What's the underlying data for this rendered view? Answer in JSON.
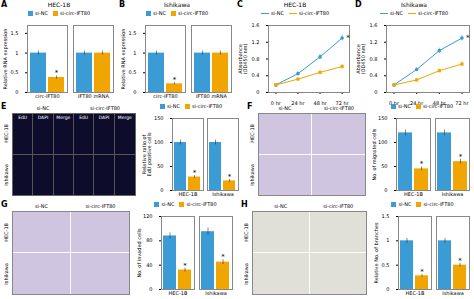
{
  "chart_data": [
    {
      "type": "bar",
      "label": "A",
      "title": "HEC-1B",
      "categories": [
        "circ-IFT80",
        "IFT80 mRNA"
      ],
      "series": [
        {
          "name": "si-NC",
          "color": "#3A9BD5",
          "values": [
            1.0,
            1.0
          ],
          "errors": [
            0.05,
            0.05
          ]
        },
        {
          "name": "si-circ-IFT80",
          "color": "#F0A500",
          "values": [
            0.38,
            1.0
          ],
          "errors": [
            0.04,
            0.05
          ]
        }
      ],
      "ylabel": "Relative RNA expression",
      "ylim": [
        0,
        1.7
      ],
      "yticks": [
        0,
        0.5,
        1,
        1.5
      ],
      "annotations": [
        {
          "text": "*",
          "series": "si-circ-IFT80",
          "category": "circ-IFT80"
        }
      ]
    },
    {
      "type": "bar",
      "label": "B",
      "title": "Ishikawa",
      "categories": [
        "circ-IFT80",
        "IFT80 mRNA"
      ],
      "series": [
        {
          "name": "si-NC",
          "color": "#3A9BD5",
          "values": [
            1.0,
            1.0
          ],
          "errors": [
            0.05,
            0.05
          ]
        },
        {
          "name": "si-circ-IFT80",
          "color": "#F0A500",
          "values": [
            0.22,
            1.0
          ],
          "errors": [
            0.03,
            0.05
          ]
        }
      ],
      "ylabel": "Relative RNA expression",
      "ylim": [
        0,
        1.7
      ],
      "yticks": [
        0,
        0.5,
        1,
        1.5
      ],
      "annotations": [
        {
          "text": "*",
          "series": "si-circ-IFT80",
          "category": "circ-IFT80"
        }
      ]
    },
    {
      "type": "line",
      "label": "C",
      "title": "HEC-1B",
      "x": [
        0,
        24,
        48,
        72
      ],
      "series": [
        {
          "name": "si-NC",
          "color": "#3A9BD5",
          "marker": "circle",
          "values": [
            0.18,
            0.45,
            0.85,
            1.3
          ],
          "errors": [
            0.02,
            0.04,
            0.06,
            0.07
          ]
        },
        {
          "name": "si-circ-IFT80",
          "color": "#F0A500",
          "marker": "square",
          "values": [
            0.18,
            0.32,
            0.48,
            0.62
          ],
          "errors": [
            0.02,
            0.03,
            0.04,
            0.05
          ]
        }
      ],
      "ylabel": "Absorbance\n(OD450 nm)",
      "xlim": [
        -8,
        80
      ],
      "xticks": [
        {
          "value": 0,
          "label": "0 hr"
        },
        {
          "value": 24,
          "label": "24 hr"
        },
        {
          "value": 48,
          "label": "48 hr"
        },
        {
          "value": 72,
          "label": "72 hr"
        }
      ],
      "ylim": [
        0,
        1.6
      ],
      "yticks": [
        0,
        0.4,
        0.8,
        1.2,
        1.6
      ],
      "annotations": [
        {
          "text": "*",
          "series": "si-NC",
          "x": 72
        }
      ]
    },
    {
      "type": "line",
      "label": "D",
      "title": "Ishikawa",
      "x": [
        0,
        24,
        48,
        72
      ],
      "series": [
        {
          "name": "si-NC",
          "color": "#3A9BD5",
          "marker": "circle",
          "values": [
            0.18,
            0.55,
            1.0,
            1.3
          ],
          "errors": [
            0.02,
            0.04,
            0.06,
            0.07
          ]
        },
        {
          "name": "si-circ-IFT80",
          "color": "#F0A500",
          "marker": "square",
          "values": [
            0.18,
            0.3,
            0.52,
            0.68
          ],
          "errors": [
            0.02,
            0.03,
            0.04,
            0.05
          ]
        }
      ],
      "ylabel": "Absorbance\n(OD450 nm)",
      "xlim": [
        -8,
        80
      ],
      "xticks": [
        {
          "value": 0,
          "label": "0 hr"
        },
        {
          "value": 24,
          "label": "24 hr"
        },
        {
          "value": 48,
          "label": "48 hr"
        },
        {
          "value": 72,
          "label": "72 hr"
        }
      ],
      "ylim": [
        0,
        1.6
      ],
      "yticks": [
        0,
        0.4,
        0.8,
        1.2,
        1.6
      ],
      "annotations": [
        {
          "text": "*",
          "series": "si-NC",
          "x": 72
        }
      ]
    },
    {
      "type": "image",
      "label": "E",
      "color": "#0d0d2b",
      "column_labels": [
        "si-NC",
        "si-circ-IFT80"
      ],
      "cell_labels": [
        "EdU",
        "DAPI",
        "Merge",
        "EdU",
        "DAPI",
        "Merge"
      ],
      "row_labels": [
        "HEC-1B",
        "Ishikawa"
      ]
    },
    {
      "type": "bar",
      "categories": [
        "HEC-1B",
        "Ishikawa"
      ],
      "series": [
        {
          "name": "si-NC",
          "color": "#3A9BD5",
          "values": [
            100,
            100
          ],
          "errors": [
            5,
            5
          ]
        },
        {
          "name": "si-circ-IFT80",
          "color": "#F0A500",
          "values": [
            28,
            20
          ],
          "errors": [
            3,
            3
          ]
        }
      ],
      "ylabel": "Relative ratio of\nEdU positive cells",
      "ylim": [
        0,
        150
      ],
      "yticks": [
        0,
        50,
        100,
        150
      ],
      "annotations": [
        {
          "text": "*",
          "series": "si-circ-IFT80",
          "category": "HEC-1B"
        },
        {
          "text": "*",
          "series": "si-circ-IFT80",
          "category": "Ishikawa"
        }
      ]
    },
    {
      "type": "image",
      "label": "F",
      "color": "#cfc5e0",
      "column_labels": [
        "si-NC",
        "si-circ-IFT80"
      ],
      "row_labels": [
        "HEC-1B",
        "Ishikawa"
      ]
    },
    {
      "type": "bar",
      "categories": [
        "HEC-1B",
        "Ishikawa"
      ],
      "series": [
        {
          "name": "si-NC",
          "color": "#3A9BD5",
          "values": [
            120,
            120
          ],
          "errors": [
            6,
            6
          ]
        },
        {
          "name": "si-circ-IFT80",
          "color": "#F0A500",
          "values": [
            45,
            60
          ],
          "errors": [
            4,
            5
          ]
        }
      ],
      "ylabel": "No. of migrated cells",
      "ylim": [
        0,
        150
      ],
      "yticks": [
        0,
        50,
        100,
        150
      ],
      "annotations": [
        {
          "text": "*",
          "series": "si-circ-IFT80",
          "category": "HEC-1B"
        },
        {
          "text": "*",
          "series": "si-circ-IFT80",
          "category": "Ishikawa"
        }
      ]
    },
    {
      "type": "image",
      "label": "G",
      "color": "#cfc5e0",
      "column_labels": [
        "si-NC",
        "si-circ-IFT80"
      ],
      "row_labels": [
        "HEC-1B",
        "Ishikawa"
      ]
    },
    {
      "type": "bar",
      "categories": [
        "HEC-1B",
        "Ishikawa"
      ],
      "series": [
        {
          "name": "si-NC",
          "color": "#3A9BD5",
          "values": [
            88,
            95
          ],
          "errors": [
            5,
            6
          ]
        },
        {
          "name": "si-circ-IFT80",
          "color": "#F0A500",
          "values": [
            32,
            45
          ],
          "errors": [
            3,
            4
          ]
        }
      ],
      "ylabel": "No. of invaded cells",
      "ylim": [
        0,
        120
      ],
      "yticks": [
        0,
        40,
        80,
        120
      ],
      "annotations": [
        {
          "text": "*",
          "series": "si-circ-IFT80",
          "category": "HEC-1B"
        },
        {
          "text": "*",
          "series": "si-circ-IFT80",
          "category": "Ishikawa"
        }
      ]
    },
    {
      "type": "image",
      "label": "H",
      "color": "#e0e0d8",
      "column_labels": [
        "si-NC",
        "si-circ-IFT80"
      ],
      "row_labels": [
        "HEC-1B",
        "Ishikawa"
      ]
    },
    {
      "type": "bar",
      "categories": [
        "HEC-1B",
        "Ishikawa"
      ],
      "series": [
        {
          "name": "si-NC",
          "color": "#3A9BD5",
          "values": [
            1.0,
            1.0
          ],
          "errors": [
            0.05,
            0.05
          ]
        },
        {
          "name": "si-circ-IFT80",
          "color": "#F0A500",
          "values": [
            0.28,
            0.5
          ],
          "errors": [
            0.03,
            0.04
          ]
        }
      ],
      "ylabel": "Relative No. of branches",
      "ylim": [
        0,
        1.5
      ],
      "yticks": [
        0,
        0.5,
        1,
        1.5
      ],
      "annotations": [
        {
          "text": "*",
          "series": "si-circ-IFT80",
          "category": "HEC-1B"
        },
        {
          "text": "*",
          "series": "si-circ-IFT80",
          "category": "Ishikawa"
        }
      ]
    }
  ]
}
